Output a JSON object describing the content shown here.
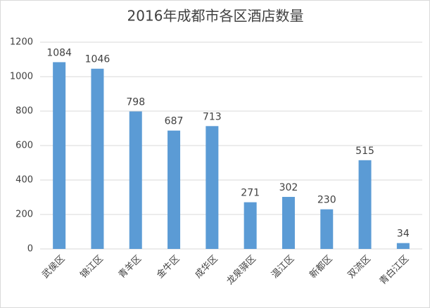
{
  "chart_data": {
    "type": "bar",
    "title": "2016年成都市各区酒店数量",
    "categories": [
      "武侯区",
      "锦江区",
      "青羊区",
      "金牛区",
      "成华区",
      "龙泉驿区",
      "温江区",
      "新都区",
      "双流区",
      "青白江区"
    ],
    "values": [
      1084,
      1046,
      798,
      687,
      713,
      271,
      302,
      230,
      515,
      34
    ],
    "color": "#5b9bd5",
    "ylim": [
      0,
      1200
    ],
    "yticks": [
      0,
      200,
      400,
      600,
      800,
      1000,
      1200
    ],
    "grid": true
  }
}
